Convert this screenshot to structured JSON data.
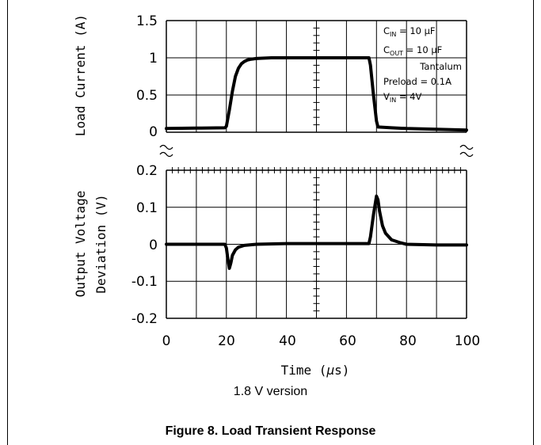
{
  "chart_data": [
    {
      "type": "line",
      "panel": "top",
      "ylabel": "Load Current (A)",
      "ylim": [
        0,
        1.5
      ],
      "y_ticks": [
        "1.5",
        "1",
        "0.5",
        "0"
      ],
      "xlim": [
        0,
        100
      ],
      "grid": true,
      "annotations": {
        "cin_label": "C",
        "cin_sub": "IN",
        "cin_value": " = 10 μF",
        "cout_label": "C",
        "cout_sub": "OUT",
        "cout_value": " = 10 μF",
        "cap_type": "Tantalum",
        "preload": "Preload = 0.1A",
        "vin_label": "V",
        "vin_sub": "IN",
        "vin_value": " = 4V"
      },
      "series": [
        {
          "x": [
            0,
            10,
            19.5,
            20,
            21,
            22,
            23,
            24,
            25,
            26,
            27,
            28,
            30,
            32,
            35,
            40,
            50,
            60,
            66,
            67.5,
            68,
            69,
            70,
            70.5,
            75,
            80,
            90,
            100
          ],
          "y": [
            0.05,
            0.055,
            0.06,
            0.08,
            0.3,
            0.55,
            0.75,
            0.86,
            0.92,
            0.95,
            0.97,
            0.98,
            0.99,
            0.995,
            1.0,
            1.0,
            1.0,
            1.0,
            1.0,
            1.0,
            0.9,
            0.5,
            0.15,
            0.07,
            0.06,
            0.05,
            0.04,
            0.03
          ]
        }
      ]
    },
    {
      "type": "line",
      "panel": "bottom",
      "ylabel": "Output Voltage Deviation (V)",
      "ylabel_lines": [
        "Output Voltage",
        "Deviation (V)"
      ],
      "ylim": [
        -0.2,
        0.2
      ],
      "y_ticks": [
        "0.2",
        "0.1",
        "0",
        "-0.1",
        "-0.2"
      ],
      "xlim": [
        0,
        100
      ],
      "x_ticks": [
        "0",
        "20",
        "40",
        "60",
        "80",
        "100"
      ],
      "xlabel_prefix": "Time (",
      "xlabel_mu": "μ",
      "xlabel_suffix": "s)",
      "grid": true,
      "series": [
        {
          "x": [
            0,
            10,
            19.5,
            20,
            20.5,
            21,
            21.5,
            22,
            23,
            24,
            26,
            30,
            40,
            50,
            60,
            67.5,
            68,
            69,
            70,
            70.5,
            71,
            72,
            73,
            75,
            78,
            80,
            90,
            100
          ],
          "y": [
            0.0,
            0.0,
            0.0,
            -0.01,
            -0.04,
            -0.065,
            -0.05,
            -0.03,
            -0.015,
            -0.008,
            -0.003,
            0.0,
            0.002,
            0.002,
            0.002,
            0.002,
            0.02,
            0.08,
            0.13,
            0.12,
            0.09,
            0.05,
            0.03,
            0.012,
            0.004,
            0.0,
            -0.002,
            -0.002
          ]
        }
      ]
    }
  ],
  "version_label": "1.8 V version",
  "caption": "Figure 8. Load Transient Response"
}
